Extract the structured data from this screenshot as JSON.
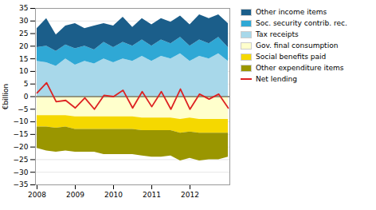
{
  "chart_data": {
    "type": "area",
    "stacked": true,
    "categories": [
      "2008",
      null,
      null,
      null,
      "2009",
      null,
      null,
      null,
      "2010",
      null,
      null,
      null,
      "2011",
      null,
      null,
      null,
      "2012",
      null,
      null,
      null,
      null
    ],
    "series": [
      {
        "name": "Tax receipts",
        "color": "#a8d8ea",
        "values": [
          14.0,
          13.5,
          12.0,
          15.0,
          12.5,
          14.0,
          13.0,
          15.0,
          13.5,
          15.0,
          14.0,
          16.0,
          14.0,
          16.0,
          15.0,
          17.0,
          14.0,
          16.0,
          15.0,
          17.0,
          14.0
        ]
      },
      {
        "name": "Soc. security contrib. rec.",
        "color": "#2fa8d5",
        "values": [
          5.5,
          6.5,
          6.0,
          5.5,
          6.5,
          6.0,
          5.5,
          6.5,
          6.0,
          6.5,
          6.0,
          6.5,
          6.0,
          6.5,
          6.0,
          6.5,
          6.0,
          6.5,
          6.0,
          6.5,
          5.5
        ]
      },
      {
        "name": "Other income items",
        "color": "#1b5e8a",
        "values": [
          7.5,
          11.0,
          6.5,
          7.5,
          10.0,
          7.0,
          9.5,
          7.5,
          8.5,
          10.0,
          7.5,
          8.5,
          8.5,
          8.5,
          8.5,
          8.5,
          8.5,
          10.0,
          10.0,
          9.0,
          9.5
        ]
      },
      {
        "name": "Gov. final consumption",
        "color": "#ffffcc",
        "values": [
          -7.5,
          -7.5,
          -7.5,
          -7.5,
          -8.0,
          -8.0,
          -8.0,
          -8.0,
          -8.0,
          -8.0,
          -8.0,
          -8.5,
          -8.5,
          -8.5,
          -8.5,
          -9.0,
          -8.5,
          -9.0,
          -9.0,
          -9.0,
          -9.0
        ]
      },
      {
        "name": "Social benefits paid",
        "color": "#f5d800",
        "values": [
          -4.5,
          -4.5,
          -5.0,
          -4.5,
          -5.0,
          -5.0,
          -5.0,
          -5.0,
          -5.0,
          -5.0,
          -5.0,
          -5.0,
          -5.0,
          -5.0,
          -5.0,
          -5.5,
          -5.5,
          -5.5,
          -5.5,
          -5.5,
          -5.5
        ]
      },
      {
        "name": "Other expenditure items",
        "color": "#9a9600",
        "values": [
          -8.5,
          -9.5,
          -9.5,
          -9.5,
          -9.0,
          -9.0,
          -9.0,
          -10.0,
          -10.0,
          -10.0,
          -10.0,
          -10.0,
          -10.5,
          -10.5,
          -10.0,
          -11.0,
          -10.5,
          -11.0,
          -10.5,
          -10.5,
          -9.5
        ]
      },
      {
        "name": "Net lending",
        "type": "line",
        "color": "#dd2222",
        "values": [
          1.5,
          5.5,
          -2.0,
          -1.5,
          -4.5,
          -0.5,
          -5.0,
          0.5,
          0.0,
          2.5,
          -4.5,
          2.0,
          -4.0,
          2.0,
          -5.0,
          3.0,
          -5.0,
          1.0,
          -1.0,
          1.0,
          -4.5
        ]
      }
    ],
    "ylabel": "€billion",
    "ylim": [
      -35,
      35
    ],
    "yticks": [
      -35,
      -30,
      -25,
      -20,
      -15,
      -10,
      -5,
      0,
      5,
      10,
      15,
      20,
      25,
      30,
      35
    ],
    "grid": true,
    "legend": "right"
  }
}
